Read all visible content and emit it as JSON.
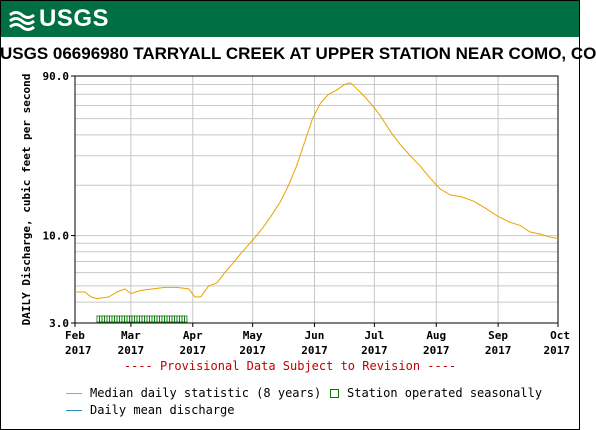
{
  "header": {
    "logo_text": "USGS",
    "brand_color": "#006f41"
  },
  "chart_data": {
    "type": "line",
    "title": "USGS 06696980 TARRYALL CREEK AT UPPER STATION NEAR COMO, CO",
    "ylabel": "DAILY Discharge, cubic feet per second",
    "yscale": "log",
    "ylim": [
      3.0,
      90.0
    ],
    "y_tick_labels": [
      "3.0",
      "10.0",
      "90.0"
    ],
    "x_tick_labels": [
      {
        "month": "Feb",
        "year": "2017"
      },
      {
        "month": "Mar",
        "year": "2017"
      },
      {
        "month": "Apr",
        "year": "2017"
      },
      {
        "month": "May",
        "year": "2017"
      },
      {
        "month": "Jun",
        "year": "2017"
      },
      {
        "month": "Jul",
        "year": "2017"
      },
      {
        "month": "Aug",
        "year": "2017"
      },
      {
        "month": "Sep",
        "year": "2017"
      },
      {
        "month": "Oct",
        "year": "2017"
      }
    ],
    "xlim": [
      "2017-02-01",
      "2017-10-01"
    ],
    "grid": true,
    "series": [
      {
        "name": "Median daily statistic (8 years)",
        "color": "#e8a200",
        "points": [
          [
            "2017-02-01",
            4.6
          ],
          [
            "2017-02-06",
            4.6
          ],
          [
            "2017-02-09",
            4.3
          ],
          [
            "2017-02-12",
            4.2
          ],
          [
            "2017-02-18",
            4.3
          ],
          [
            "2017-02-22",
            4.6
          ],
          [
            "2017-02-26",
            4.8
          ],
          [
            "2017-03-01",
            4.5
          ],
          [
            "2017-03-06",
            4.7
          ],
          [
            "2017-03-12",
            4.8
          ],
          [
            "2017-03-18",
            4.9
          ],
          [
            "2017-03-24",
            4.9
          ],
          [
            "2017-03-30",
            4.8
          ],
          [
            "2017-04-02",
            4.3
          ],
          [
            "2017-04-05",
            4.3
          ],
          [
            "2017-04-09",
            5.0
          ],
          [
            "2017-04-13",
            5.2
          ],
          [
            "2017-04-17",
            6.0
          ],
          [
            "2017-04-21",
            6.8
          ],
          [
            "2017-04-25",
            7.8
          ],
          [
            "2017-04-29",
            8.8
          ],
          [
            "2017-05-03",
            10.0
          ],
          [
            "2017-05-07",
            11.5
          ],
          [
            "2017-05-11",
            13.5
          ],
          [
            "2017-05-15",
            16.0
          ],
          [
            "2017-05-19",
            20.0
          ],
          [
            "2017-05-23",
            26.0
          ],
          [
            "2017-05-27",
            36.0
          ],
          [
            "2017-05-31",
            50.0
          ],
          [
            "2017-06-04",
            62.0
          ],
          [
            "2017-06-08",
            70.0
          ],
          [
            "2017-06-12",
            74.0
          ],
          [
            "2017-06-16",
            80.0
          ],
          [
            "2017-06-19",
            82.0
          ],
          [
            "2017-06-22",
            76.0
          ],
          [
            "2017-06-26",
            68.0
          ],
          [
            "2017-06-30",
            60.0
          ],
          [
            "2017-07-04",
            52.0
          ],
          [
            "2017-07-09",
            42.0
          ],
          [
            "2017-07-14",
            35.0
          ],
          [
            "2017-07-19",
            30.0
          ],
          [
            "2017-07-24",
            26.0
          ],
          [
            "2017-07-29",
            22.0
          ],
          [
            "2017-08-03",
            19.0
          ],
          [
            "2017-08-08",
            17.5
          ],
          [
            "2017-08-14",
            17.0
          ],
          [
            "2017-08-20",
            16.0
          ],
          [
            "2017-08-26",
            14.5
          ],
          [
            "2017-09-01",
            13.0
          ],
          [
            "2017-09-07",
            12.0
          ],
          [
            "2017-09-12",
            11.5
          ],
          [
            "2017-09-17",
            10.5
          ],
          [
            "2017-09-22",
            10.2
          ],
          [
            "2017-09-27",
            9.8
          ],
          [
            "2017-10-01",
            9.6
          ]
        ]
      },
      {
        "name": "Daily mean discharge",
        "color": "#2a8fbd",
        "points": []
      }
    ],
    "seasonal_marker": {
      "name": "Station operated seasonally",
      "color": "#007a00",
      "start": "2017-02-12",
      "end": "2017-03-28",
      "level": 3.0
    },
    "annotation": "---- Provisional Data Subject to Revision ----"
  }
}
